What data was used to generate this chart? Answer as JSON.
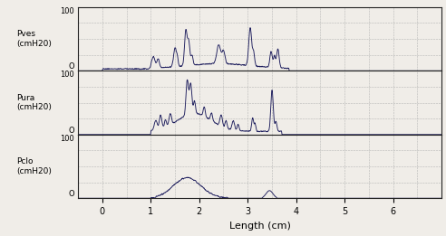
{
  "xlabel": "Length (cm)",
  "xlim": [
    -0.5,
    7.0
  ],
  "xticks": [
    0,
    1,
    2,
    3,
    4,
    5,
    6
  ],
  "panels": [
    {
      "label": "Pves\n(cmH20)",
      "ylim": [
        0,
        100
      ]
    },
    {
      "label": "Pura\n(cmH20)",
      "ylim": [
        0,
        100
      ]
    },
    {
      "label": "Pclo\n(cmH20)",
      "ylim": [
        0,
        100
      ]
    }
  ],
  "line_color": "#1c1c5c",
  "grid_color": "#b0b0b0",
  "bg_color": "#f0ede8",
  "spine_color": "#222222"
}
